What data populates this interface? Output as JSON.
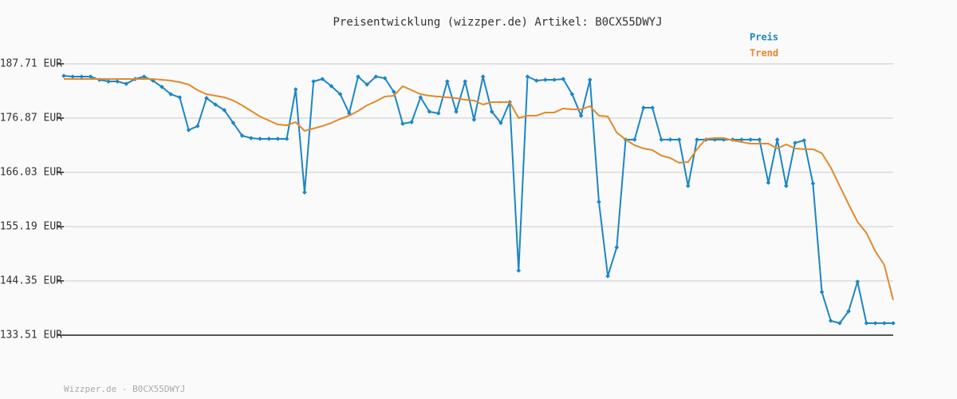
{
  "chart_data": {
    "type": "line",
    "title": "Preisentwicklung (wizzper.de) Artikel: B0CX55DWYJ",
    "footer": "Wizzper.de - B0CX55DWYJ",
    "legend": "top-right",
    "grid": true,
    "categories": [
      null,
      null,
      null,
      null,
      null,
      null,
      null,
      null,
      null,
      null,
      null,
      null,
      null,
      null,
      null,
      null,
      null,
      null,
      null,
      null,
      null,
      null,
      null,
      null,
      null,
      null,
      null,
      null,
      null,
      null,
      null,
      null,
      null,
      null,
      null,
      null,
      null,
      null,
      null,
      null,
      null,
      null,
      null,
      null,
      null,
      null,
      null,
      null,
      null,
      null,
      null,
      null,
      null,
      null,
      null,
      null,
      null,
      null,
      null,
      null,
      null,
      null,
      null,
      null,
      null,
      null,
      null,
      null,
      null,
      null,
      null,
      null,
      null,
      null,
      null,
      null,
      null,
      null,
      null,
      null,
      null,
      null,
      null,
      null,
      null,
      null,
      null,
      null,
      null,
      null,
      null,
      null,
      null,
      null
    ],
    "ylim": [
      133.51,
      187.71
    ],
    "yticks": [
      {
        "value": 133.51,
        "label": "133.51 EUR"
      },
      {
        "value": 144.35,
        "label": "144.35 EUR"
      },
      {
        "value": 155.19,
        "label": "155.19 EUR"
      },
      {
        "value": 166.03,
        "label": "166.03 EUR"
      },
      {
        "value": 176.87,
        "label": "176.87 EUR"
      },
      {
        "value": 187.71,
        "label": "187.71 EUR"
      }
    ],
    "series": [
      {
        "name": "Preis",
        "color": "#1b86c4",
        "markers": true,
        "values": [
          185.32,
          185.16,
          185.16,
          185.16,
          184.52,
          184.2,
          184.2,
          183.72,
          184.68,
          185.16,
          184.36,
          183.09,
          181.65,
          181.01,
          174.48,
          175.28,
          180.86,
          179.58,
          178.46,
          175.91,
          173.36,
          172.87,
          172.73,
          172.73,
          172.73,
          172.73,
          182.61,
          162.04,
          184.2,
          184.68,
          183.25,
          181.65,
          177.83,
          185.16,
          183.57,
          185.16,
          184.84,
          182.13,
          175.75,
          176.07,
          181.01,
          178.15,
          177.83,
          184.2,
          178.15,
          184.2,
          176.55,
          185.16,
          178.15,
          175.91,
          180.06,
          146.42,
          185.16,
          184.36,
          184.52,
          184.52,
          184.68,
          181.65,
          177.35,
          184.52,
          160.13,
          145.31,
          151.05,
          172.57,
          172.57,
          178.94,
          178.94,
          172.57,
          172.57,
          172.57,
          163.32,
          172.57,
          172.57,
          172.57,
          172.57,
          172.57,
          172.57,
          172.57,
          172.57,
          163.96,
          172.57,
          163.32,
          171.93,
          172.41,
          163.8,
          142.12,
          136.38,
          135.9,
          138.29,
          144.19,
          135.9,
          135.9,
          135.9,
          135.9
        ]
      },
      {
        "name": "Trend",
        "color": "#e3892b",
        "markers": false,
        "values": [
          184.68,
          184.68,
          184.68,
          184.68,
          184.68,
          184.68,
          184.68,
          184.68,
          184.68,
          184.68,
          184.68,
          184.52,
          184.36,
          184.04,
          183.57,
          182.45,
          181.65,
          181.33,
          181.01,
          180.38,
          179.42,
          178.31,
          177.19,
          176.39,
          175.59,
          175.44,
          176.07,
          174.32,
          174.8,
          175.28,
          175.91,
          176.71,
          177.35,
          178.31,
          179.42,
          180.22,
          181.17,
          181.33,
          183.25,
          182.45,
          181.65,
          181.33,
          181.17,
          181.01,
          180.86,
          180.54,
          180.38,
          179.58,
          180.06,
          180.06,
          180.06,
          176.87,
          177.35,
          177.35,
          177.99,
          177.99,
          178.78,
          178.62,
          178.62,
          179.26,
          177.35,
          177.19,
          173.99,
          172.57,
          171.45,
          170.81,
          170.49,
          169.38,
          168.9,
          167.94,
          168.1,
          170.65,
          172.73,
          172.89,
          172.89,
          172.41,
          172.09,
          171.77,
          171.77,
          171.77,
          170.81,
          171.61,
          170.81,
          170.65,
          170.65,
          169.86,
          166.99,
          163.32,
          159.65,
          156.15,
          153.91,
          150.25,
          147.54,
          140.52
        ]
      }
    ]
  }
}
